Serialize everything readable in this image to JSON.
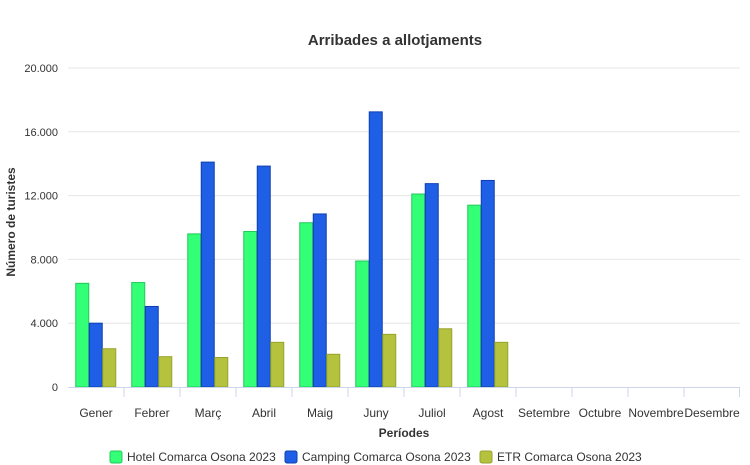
{
  "chart_data": {
    "type": "bar",
    "title": "Arribades a allotjaments",
    "xlabel": "Períodes",
    "ylabel": "Número de turistes",
    "categories": [
      "Gener",
      "Febrer",
      "Març",
      "Abril",
      "Maig",
      "Juny",
      "Juliol",
      "Agost",
      "Setembre",
      "Octubre",
      "Novembre",
      "Desembre"
    ],
    "ylim": [
      0,
      20000
    ],
    "yticks": [
      0,
      4000,
      8000,
      12000,
      16000,
      20000
    ],
    "ytick_labels": [
      "0",
      "4.000",
      "8.000",
      "12.000",
      "16.000",
      "20.000"
    ],
    "grid": true,
    "legend_position": "bottom",
    "series": [
      {
        "name": "Hotel Comarca Osona 2023",
        "color": "#33ff77",
        "border": "#22c85a",
        "values": [
          6500,
          6550,
          9600,
          9750,
          10300,
          7900,
          12100,
          11400,
          null,
          null,
          null,
          null
        ]
      },
      {
        "name": "Camping Comarca Osona 2023",
        "color": "#1f5fe6",
        "border": "#0f3fb0",
        "values": [
          4000,
          5050,
          14100,
          13850,
          10850,
          17250,
          12750,
          12950,
          null,
          null,
          null,
          null
        ]
      },
      {
        "name": "ETR Comarca Osona 2023",
        "color": "#b5c23e",
        "border": "#97a32c",
        "values": [
          2400,
          1900,
          1850,
          2800,
          2050,
          3300,
          3650,
          2800,
          null,
          null,
          null,
          null
        ]
      }
    ]
  }
}
